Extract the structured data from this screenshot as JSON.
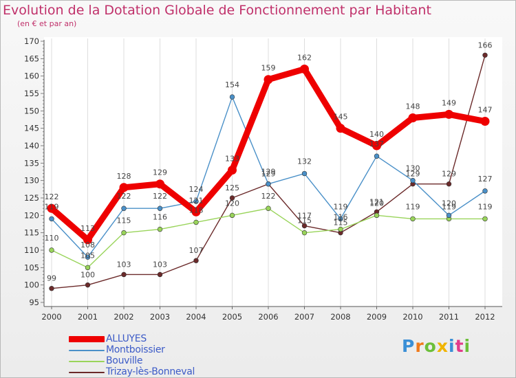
{
  "title": "Evolution de la Dotation Globale de Fonctionnement par Habitant",
  "subtitle": "(en € et par an)",
  "logo_text": "Proxiti",
  "colors": {
    "title": "#c0306a",
    "axis_text": "#333333",
    "legend_text": "#3c5bc7",
    "grid": "#dddddd"
  },
  "chart_data": {
    "type": "line",
    "title": "Evolution de la Dotation Globale de Fonctionnement par Habitant",
    "subtitle": "(en € et par an)",
    "x": [
      2000,
      2001,
      2002,
      2003,
      2004,
      2005,
      2006,
      2007,
      2008,
      2009,
      2010,
      2011,
      2012
    ],
    "ylim": [
      95,
      170
    ],
    "yticks": [
      95,
      100,
      105,
      110,
      115,
      120,
      125,
      130,
      135,
      140,
      145,
      150,
      155,
      160,
      165,
      170
    ],
    "grid": "vertical",
    "legend_position": "bottom-left",
    "series": [
      {
        "name": "ALLUYES",
        "color": "#ee0000",
        "values": [
          122,
          113,
          128,
          129,
          121,
          133,
          159,
          162,
          145,
          140,
          148,
          149,
          147
        ],
        "labels": [
          "122",
          "113",
          "128",
          "129",
          "121",
          "133",
          "159",
          "162",
          "145",
          "140",
          "148",
          "149",
          "147"
        ]
      },
      {
        "name": "Montboissier",
        "color": "#4a90c8",
        "values": [
          119,
          108,
          122,
          122,
          124,
          154,
          129,
          132,
          119,
          137,
          130,
          120,
          127
        ],
        "labels": [
          "119",
          "108",
          "122",
          "122",
          "124",
          "154",
          "129",
          "132",
          "119",
          "137",
          "130",
          "120",
          "127"
        ]
      },
      {
        "name": "Bouville",
        "color": "#99d45a",
        "values": [
          110,
          105,
          115,
          116,
          118,
          120,
          122,
          115,
          116,
          120,
          119,
          119,
          119
        ],
        "labels": [
          "110",
          "105",
          "115",
          "116",
          "118",
          "120",
          "122",
          "115",
          "116",
          "120",
          "119",
          "119",
          "119"
        ]
      },
      {
        "name": "Trizay-lès-Bonneval",
        "color": "#6b2a2a",
        "values": [
          99,
          100,
          103,
          103,
          107,
          125,
          129,
          117,
          115,
          121,
          129,
          129,
          166
        ],
        "labels": [
          "99",
          "100",
          "103",
          "103",
          "107",
          "125",
          "129",
          "117",
          "115",
          "121",
          "129",
          "129",
          "166"
        ]
      }
    ]
  }
}
